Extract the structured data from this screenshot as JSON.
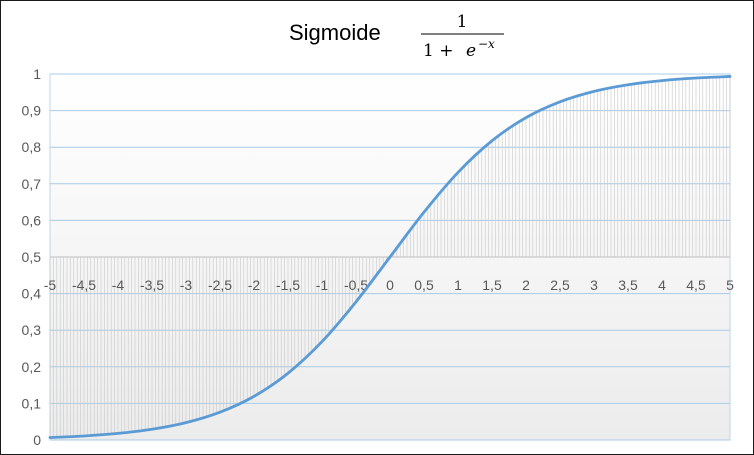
{
  "chart_data": {
    "type": "area",
    "title": "Sigmoide",
    "formula": {
      "numerator": "1",
      "denominator_base": "1 +",
      "denominator_exp_base": "e",
      "denominator_exp": "−x"
    },
    "x_tick_labels": [
      "-5",
      "-4,5",
      "-4",
      "-3,5",
      "-3",
      "-2,5",
      "-2",
      "-1,5",
      "-1",
      "-0,5",
      "0",
      "0,5",
      "1",
      "1,5",
      "2",
      "2,5",
      "3",
      "3,5",
      "4",
      "4,5",
      "5"
    ],
    "y_tick_labels": [
      "0",
      "0,1",
      "0,2",
      "0,3",
      "0,4",
      "0,5",
      "0,6",
      "0,7",
      "0,8",
      "0,9",
      "1"
    ],
    "xlim": [
      -5,
      5
    ],
    "ylim": [
      0,
      1
    ],
    "x_axis_crosses_y_at": 0.5,
    "grid": true,
    "line_color": "#5b9bd5",
    "fill_line_color": "#c8c8c8",
    "gridline_color": "#a8cbe8",
    "series": [
      {
        "x": [
          -5,
          -4.5,
          -4,
          -3.5,
          -3,
          -2.5,
          -2,
          -1.5,
          -1,
          -0.5,
          0,
          0.5,
          1,
          1.5,
          2,
          2.5,
          3,
          3.5,
          4,
          4.5,
          5
        ],
        "values": [
          0.0067,
          0.011,
          0.018,
          0.0293,
          0.0474,
          0.0759,
          0.1192,
          0.1824,
          0.2689,
          0.3775,
          0.5,
          0.6225,
          0.7311,
          0.8176,
          0.8808,
          0.9241,
          0.9526,
          0.9707,
          0.982,
          0.989,
          0.9933
        ]
      }
    ]
  }
}
